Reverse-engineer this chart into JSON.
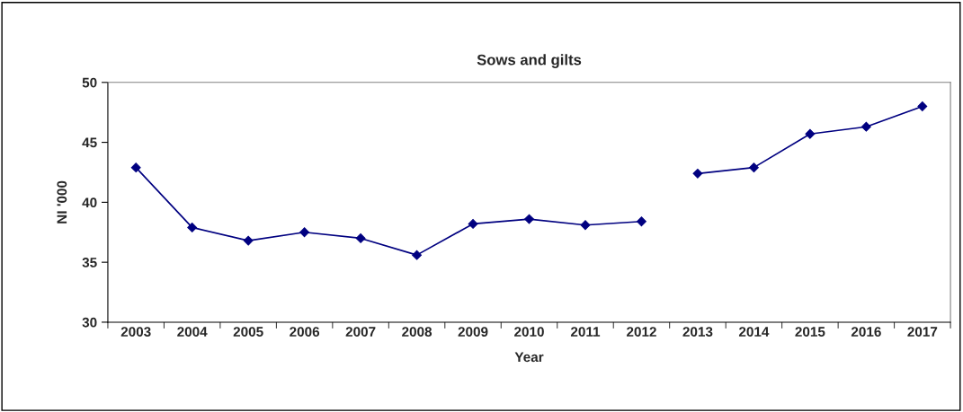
{
  "chart_data": {
    "type": "line",
    "title": "Sows and gilts",
    "xlabel": "Year",
    "ylabel": "NI '000",
    "categories": [
      "2003",
      "2004",
      "2005",
      "2006",
      "2007",
      "2008",
      "2009",
      "2010",
      "2011",
      "2012",
      "2013",
      "2014",
      "2015",
      "2016",
      "2017"
    ],
    "series": [
      {
        "color": "#000080",
        "values": [
          42.9,
          37.9,
          36.8,
          37.5,
          37.0,
          35.6,
          38.2,
          38.6,
          38.1,
          38.4,
          null,
          null,
          null,
          null,
          null
        ]
      },
      {
        "color": "#000080",
        "values": [
          null,
          null,
          null,
          null,
          null,
          null,
          null,
          null,
          null,
          null,
          42.4,
          42.9,
          45.7,
          46.3,
          48.0
        ]
      }
    ],
    "ylim": [
      30,
      50
    ],
    "yticks": [
      30,
      35,
      40,
      45,
      50
    ],
    "grid": false,
    "marker": "diamond",
    "line_style": "solid"
  }
}
